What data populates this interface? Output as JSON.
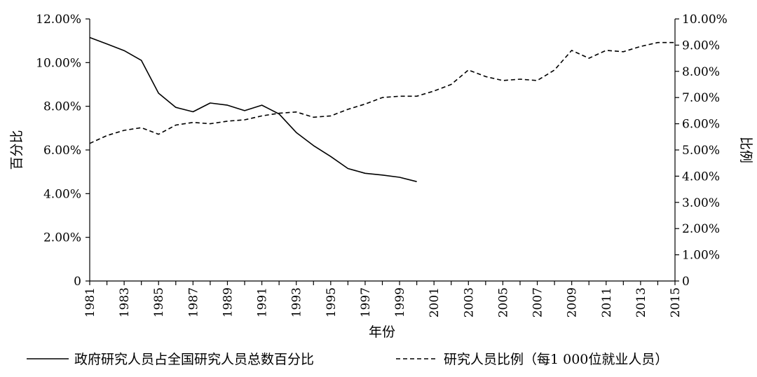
{
  "chart_data": {
    "type": "line",
    "xlabel": "年份",
    "ylabel_left": "百分比",
    "ylabel_right": "比例",
    "x_ticks": [
      "1981",
      "1983",
      "1985",
      "1987",
      "1989",
      "1991",
      "1993",
      "1995",
      "1997",
      "1999",
      "2001",
      "2003",
      "2005",
      "2007",
      "2009",
      "2011",
      "2013",
      "2015"
    ],
    "y_left": {
      "min": 0,
      "max": 12,
      "ticks": [
        "0",
        "2.00%",
        "4.00%",
        "6.00%",
        "8.00%",
        "10.00%",
        "12.00%"
      ]
    },
    "y_right": {
      "min": 0,
      "max": 10,
      "ticks": [
        "0",
        "1.00%",
        "2.00%",
        "3.00%",
        "4.00%",
        "5.00%",
        "6.00%",
        "7.00%",
        "8.00%",
        "9.00%",
        "10.00%"
      ]
    },
    "grid": false,
    "legend_position": "bottom",
    "series": [
      {
        "name": "政府研究人员占全国研究人员总数百分比",
        "axis": "left",
        "style": "solid",
        "x": [
          1981,
          1982,
          1983,
          1984,
          1985,
          1986,
          1987,
          1988,
          1989,
          1990,
          1991,
          1992,
          1993,
          1994,
          1995,
          1996,
          1997,
          1998,
          1999,
          2000
        ],
        "values": [
          11.15,
          10.85,
          10.55,
          10.1,
          8.6,
          7.95,
          7.75,
          8.15,
          8.05,
          7.8,
          8.05,
          7.65,
          6.8,
          6.2,
          5.7,
          5.15,
          4.93,
          4.85,
          4.75,
          4.55
        ]
      },
      {
        "name": "研究人员比例（每1 000位就业人员）",
        "axis": "right",
        "style": "dashed",
        "x": [
          1981,
          1982,
          1983,
          1984,
          1985,
          1986,
          1987,
          1988,
          1989,
          1990,
          1991,
          1992,
          1993,
          1994,
          1995,
          1996,
          1997,
          1998,
          1999,
          2000,
          2001,
          2002,
          2003,
          2004,
          2005,
          2006,
          2007,
          2008,
          2009,
          2010,
          2011,
          2012,
          2013,
          2014,
          2015
        ],
        "values": [
          5.25,
          5.55,
          5.75,
          5.85,
          5.6,
          5.95,
          6.05,
          6.0,
          6.1,
          6.15,
          6.3,
          6.4,
          6.45,
          6.25,
          6.3,
          6.55,
          6.75,
          7.0,
          7.05,
          7.05,
          7.25,
          7.5,
          8.05,
          7.8,
          7.65,
          7.7,
          7.65,
          8.05,
          8.8,
          8.5,
          8.8,
          8.75,
          8.95,
          9.1,
          9.1
        ]
      }
    ]
  }
}
